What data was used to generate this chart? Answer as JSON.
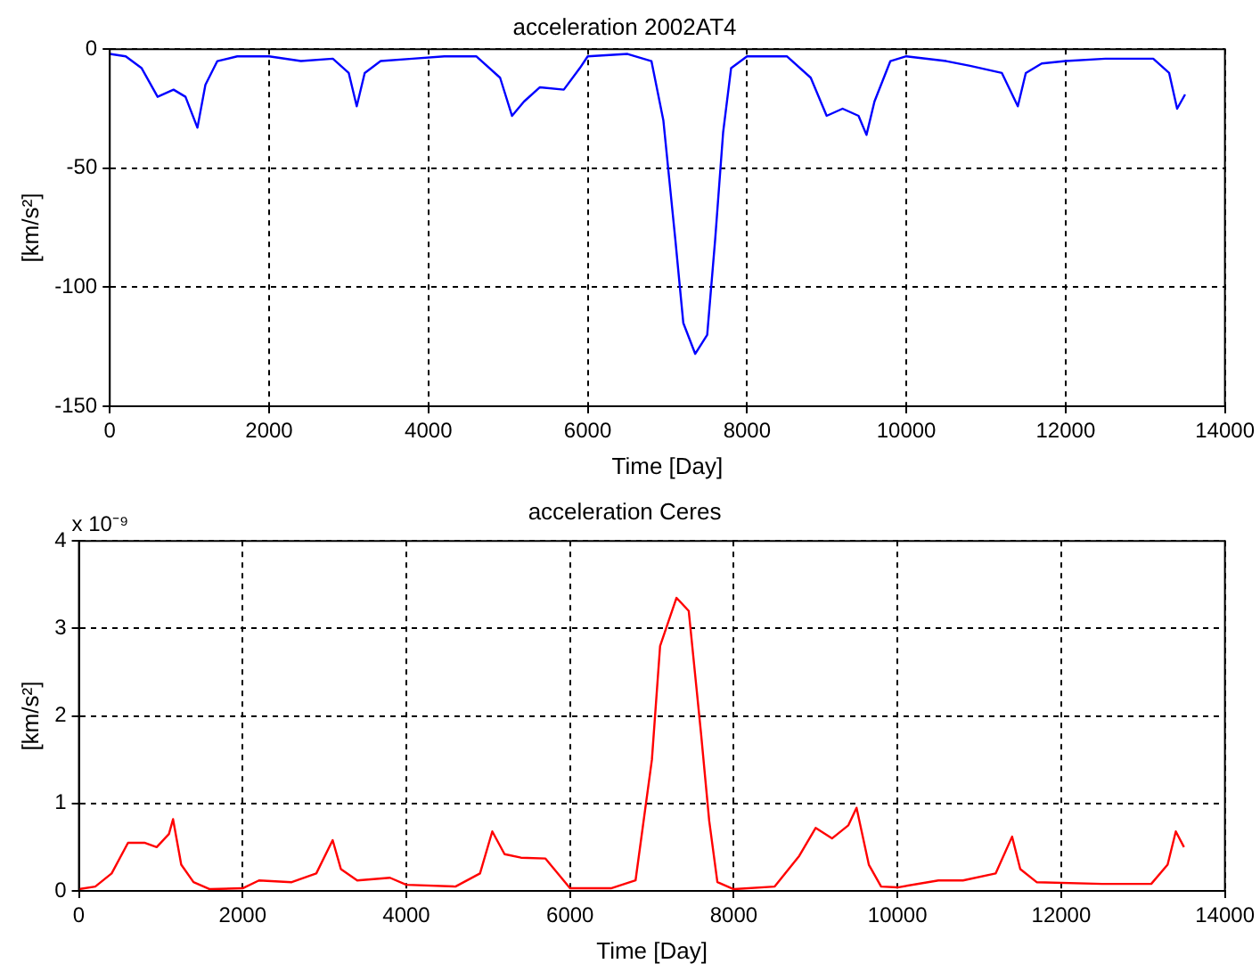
{
  "chart_data": [
    {
      "type": "line",
      "title": "acceleration 2002AT4",
      "xlabel": "Time [Day]",
      "ylabel": "[km/s²]",
      "xlim": [
        0,
        14000
      ],
      "xticks": [
        0,
        2000,
        4000,
        6000,
        8000,
        10000,
        12000,
        14000
      ],
      "ylim": [
        -150,
        0
      ],
      "yticks": [
        -150,
        -100,
        -50,
        0
      ],
      "grid": true,
      "series": [
        {
          "color": "#0000ff",
          "x": [
            0,
            200,
            400,
            600,
            800,
            950,
            1100,
            1200,
            1350,
            1600,
            2000,
            2400,
            2800,
            3000,
            3100,
            3200,
            3400,
            3800,
            4200,
            4600,
            4900,
            5050,
            5200,
            5400,
            5700,
            5900,
            6000,
            6500,
            6800,
            6950,
            7100,
            7200,
            7350,
            7500,
            7600,
            7700,
            7800,
            8000,
            8500,
            8800,
            9000,
            9200,
            9400,
            9500,
            9600,
            9800,
            10000,
            10500,
            10800,
            11200,
            11400,
            11500,
            11700,
            12000,
            12500,
            13100,
            13300,
            13400,
            13500
          ],
          "values": [
            -2,
            -3,
            -8,
            -20,
            -17,
            -20,
            -33,
            -15,
            -5,
            -3,
            -3,
            -5,
            -4,
            -10,
            -24,
            -10,
            -5,
            -4,
            -3,
            -3,
            -12,
            -28,
            -22,
            -16,
            -17,
            -8,
            -3,
            -2,
            -5,
            -30,
            -80,
            -115,
            -128,
            -120,
            -80,
            -35,
            -8,
            -3,
            -3,
            -12,
            -28,
            -25,
            -28,
            -36,
            -22,
            -5,
            -3,
            -5,
            -7,
            -10,
            -24,
            -10,
            -6,
            -5,
            -4,
            -4,
            -10,
            -25,
            -19
          ]
        }
      ]
    },
    {
      "type": "line",
      "title": "acceleration Ceres",
      "xlabel": "Time [Day]",
      "ylabel": "[km/s²]",
      "annotations": [
        "x 10⁻⁹"
      ],
      "xlim": [
        0,
        14000
      ],
      "xticks": [
        0,
        2000,
        4000,
        6000,
        8000,
        10000,
        12000,
        14000
      ],
      "ylim": [
        0,
        4
      ],
      "yticks": [
        0,
        1,
        2,
        3,
        4
      ],
      "grid": true,
      "series": [
        {
          "color": "#ff0000",
          "x": [
            0,
            200,
            400,
            600,
            800,
            950,
            1100,
            1150,
            1250,
            1400,
            1600,
            2000,
            2200,
            2600,
            2900,
            3100,
            3200,
            3400,
            3800,
            4000,
            4600,
            4900,
            5050,
            5200,
            5400,
            5700,
            6000,
            6500,
            6800,
            7000,
            7100,
            7300,
            7450,
            7600,
            7700,
            7800,
            8000,
            8500,
            8800,
            9000,
            9200,
            9400,
            9500,
            9650,
            9800,
            10000,
            10500,
            10800,
            11200,
            11400,
            11500,
            11700,
            12500,
            13100,
            13300,
            13400,
            13500
          ],
          "values": [
            0.02,
            0.05,
            0.2,
            0.55,
            0.55,
            0.5,
            0.65,
            0.82,
            0.3,
            0.1,
            0.02,
            0.03,
            0.12,
            0.1,
            0.2,
            0.58,
            0.25,
            0.12,
            0.15,
            0.07,
            0.05,
            0.2,
            0.68,
            0.42,
            0.38,
            0.37,
            0.03,
            0.03,
            0.12,
            1.5,
            2.8,
            3.35,
            3.2,
            1.8,
            0.8,
            0.1,
            0.02,
            0.05,
            0.4,
            0.72,
            0.6,
            0.75,
            0.95,
            0.3,
            0.05,
            0.04,
            0.12,
            0.12,
            0.2,
            0.62,
            0.25,
            0.1,
            0.08,
            0.08,
            0.3,
            0.68,
            0.5
          ]
        }
      ]
    }
  ]
}
